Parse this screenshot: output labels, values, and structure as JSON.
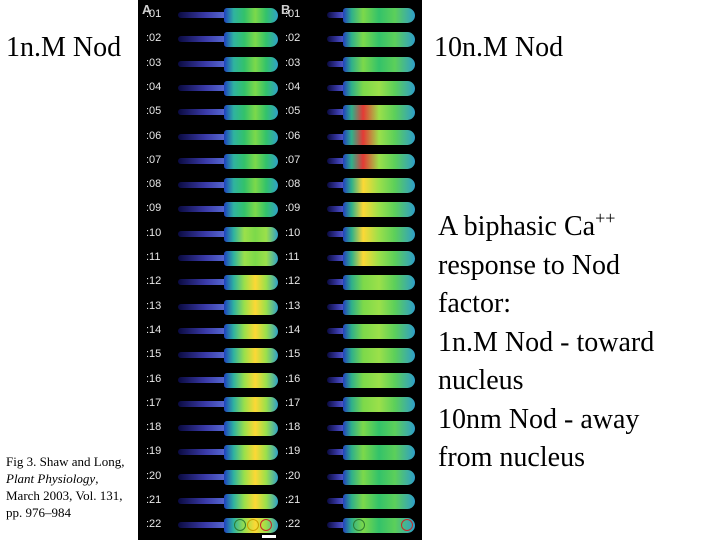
{
  "labels": {
    "left_concentration": "1n.M Nod",
    "right_concentration": "10n.M Nod"
  },
  "caption": {
    "prefix": "Fig 3.  Shaw and Long, ",
    "journal": "Plant Physiology",
    "suffix": ", March 2003, Vol. 131, pp. 976–984"
  },
  "description": {
    "line1_main": "A biphasic Ca",
    "line1_sup": "++",
    "rest": [
      "response to Nod",
      "factor:",
      "1n.M Nod - toward",
      "nucleus",
      "10nm Nod - away",
      "from nucleus"
    ]
  },
  "figure": {
    "panel_a_letter": "A",
    "panel_b_letter": "B",
    "time_labels": [
      ":01",
      ":02",
      ":03",
      ":04",
      ":05",
      ":06",
      ":07",
      ":08",
      ":09",
      ":10",
      ":11",
      ":12",
      ":13",
      ":14",
      ":15",
      ":16",
      ":17",
      ":18",
      ":19",
      ":20",
      ":21",
      ":22"
    ],
    "panel_a_intensity": [
      0.3,
      0.3,
      0.32,
      0.34,
      0.38,
      0.4,
      0.44,
      0.46,
      0.5,
      0.55,
      0.58,
      0.62,
      0.64,
      0.66,
      0.68,
      0.7,
      0.72,
      0.7,
      0.74,
      0.72,
      0.7,
      0.66
    ],
    "panel_b_intensity": [
      0.3,
      0.35,
      0.45,
      0.6,
      0.9,
      0.95,
      0.85,
      0.8,
      0.7,
      0.65,
      0.62,
      0.6,
      0.58,
      0.56,
      0.55,
      0.54,
      0.52,
      0.5,
      0.5,
      0.48,
      0.46,
      0.44
    ],
    "circle_colors": [
      "#2e7d32",
      "#c8a000",
      "#c62828"
    ]
  }
}
